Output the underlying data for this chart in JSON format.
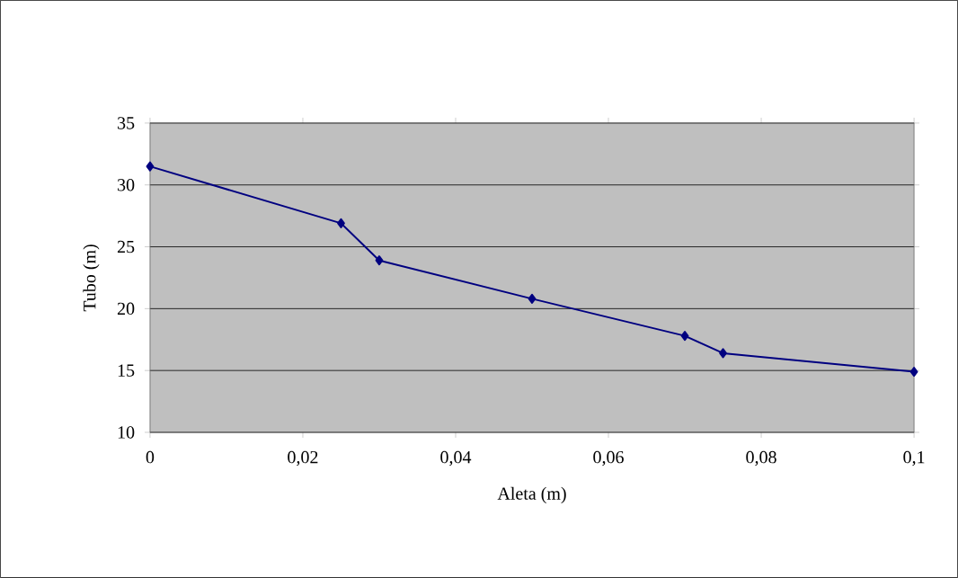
{
  "chart_data": {
    "type": "line",
    "xlabel": "Aleta (m)",
    "ylabel": "Tubo (m)",
    "x": [
      0,
      0.025,
      0.03,
      0.05,
      0.07,
      0.075,
      0.1
    ],
    "series": [
      {
        "color": "#000080",
        "values": [
          31.5,
          26.9,
          23.9,
          20.8,
          17.8,
          16.4,
          14.9
        ]
      }
    ],
    "xlim": [
      0,
      0.1
    ],
    "xticks": [
      0,
      {
        "value": 0.02,
        "label": "0,02"
      },
      {
        "value": 0.04,
        "label": "0,04"
      },
      {
        "value": 0.06,
        "label": "0,06"
      },
      {
        "value": 0.08,
        "label": "0,08"
      },
      {
        "value": 0.1,
        "label": "0,1"
      }
    ],
    "ylim": [
      10,
      35
    ],
    "yticks": [
      10,
      15,
      20,
      25,
      30,
      35
    ],
    "grid": "y",
    "marker": "diamond",
    "line_style": "solid"
  }
}
